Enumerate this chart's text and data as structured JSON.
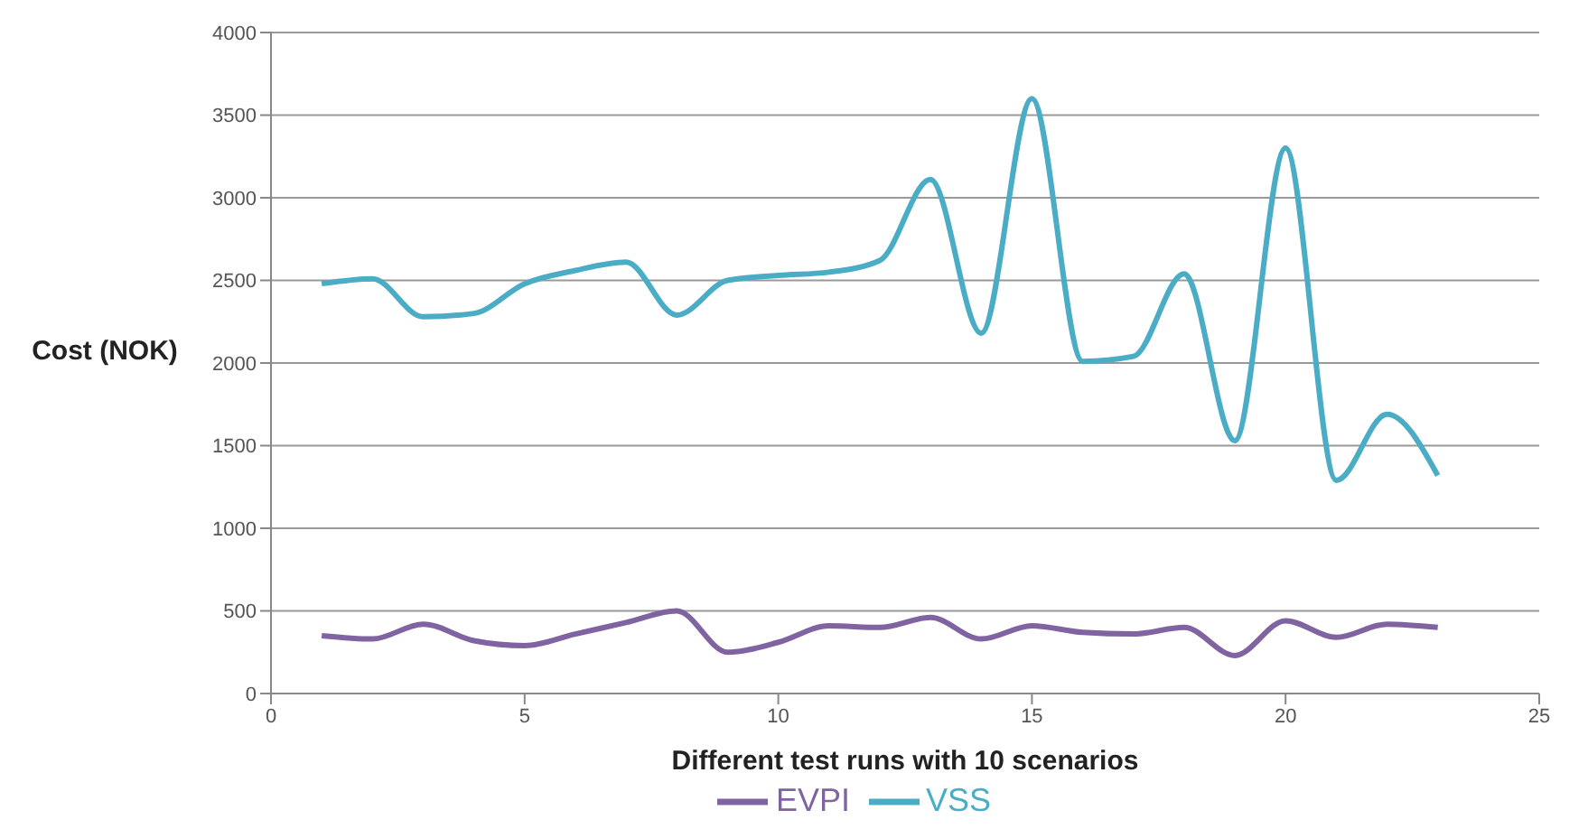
{
  "chart_data": {
    "type": "line",
    "xlabel": "Different test runs with 10 scenarios",
    "ylabel": "Cost (NOK)",
    "x": [
      1,
      2,
      3,
      4,
      5,
      6,
      7,
      8,
      9,
      10,
      11,
      12,
      13,
      14,
      15,
      16,
      17,
      18,
      19,
      20,
      21,
      22,
      23
    ],
    "series": [
      {
        "name": "EVPI",
        "color": "#8064a2",
        "values": [
          350,
          330,
          420,
          320,
          290,
          360,
          430,
          500,
          250,
          310,
          410,
          400,
          460,
          330,
          410,
          370,
          360,
          400,
          230,
          440,
          340,
          420,
          400
        ]
      },
      {
        "name": "VSS",
        "color": "#4bacc6",
        "values": [
          2480,
          2510,
          2280,
          2300,
          2480,
          2560,
          2610,
          2290,
          2500,
          2530,
          2550,
          2620,
          3110,
          2180,
          3600,
          2010,
          2040,
          2540,
          1530,
          3300,
          1290,
          1690,
          1320
        ]
      }
    ],
    "xlim": [
      0,
      25
    ],
    "xticks": [
      0,
      5,
      10,
      15,
      20,
      25
    ],
    "ylim": [
      0,
      4000
    ],
    "yticks": [
      0,
      500,
      1000,
      1500,
      2000,
      2500,
      3000,
      3500,
      4000
    ],
    "grid": "y",
    "legend": "bottom",
    "marker": "none",
    "line_style": "solid"
  }
}
